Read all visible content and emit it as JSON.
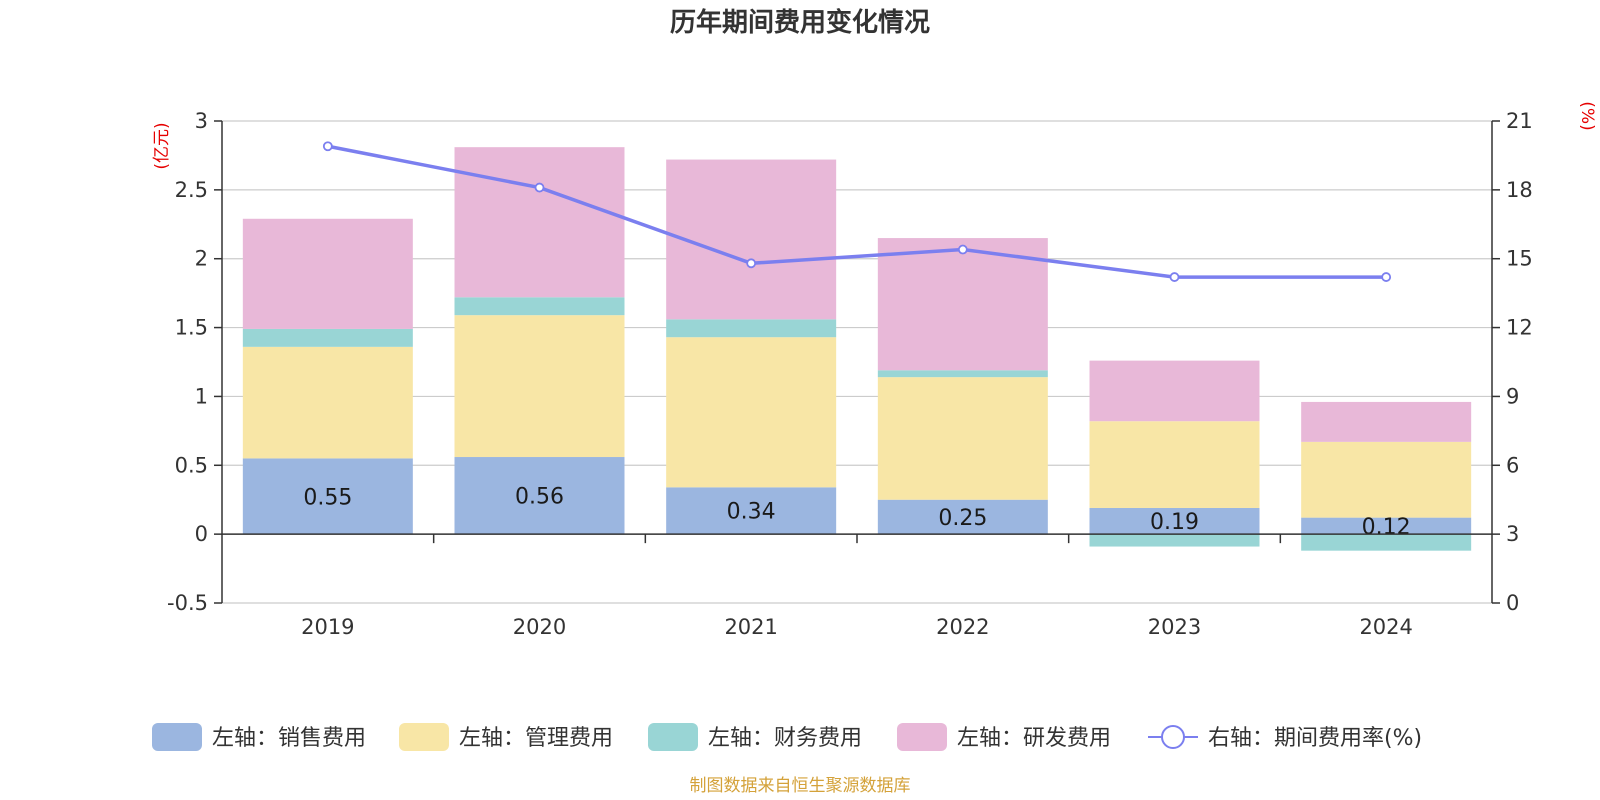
{
  "chart_data": {
    "type": "bar",
    "stacked": true,
    "title": "历年期间费用变化情况",
    "categories": [
      "2019",
      "2020",
      "2021",
      "2022",
      "2023",
      "2024"
    ],
    "left_axis": {
      "unit": "(亿元)",
      "min": -0.5,
      "max": 3,
      "ticks": [
        "-0.5",
        "0",
        "0.5",
        "1",
        "1.5",
        "2",
        "2.5",
        "3"
      ]
    },
    "right_axis": {
      "unit": "(%)",
      "min": 0,
      "max": 21,
      "ticks": [
        "0",
        "3",
        "6",
        "9",
        "12",
        "15",
        "18",
        "21"
      ]
    },
    "series": [
      {
        "name": "左轴：销售费用",
        "axis": "left",
        "color": "#9bb6e0",
        "values": [
          0.55,
          0.56,
          0.34,
          0.25,
          0.19,
          0.12
        ],
        "labels": [
          "0.55",
          "0.56",
          "0.34",
          "0.25",
          "0.19",
          "0.12"
        ]
      },
      {
        "name": "左轴：管理费用",
        "axis": "left",
        "color": "#f8e6a6",
        "values": [
          0.81,
          1.03,
          1.09,
          0.89,
          0.63,
          0.55
        ]
      },
      {
        "name": "左轴：财务费用",
        "axis": "left",
        "color": "#99d5d5",
        "values": [
          0.13,
          0.13,
          0.13,
          0.05,
          -0.09,
          -0.12
        ]
      },
      {
        "name": "左轴：研发费用",
        "axis": "left",
        "color": "#e8b8d8",
        "values": [
          0.8,
          1.09,
          1.16,
          0.96,
          0.44,
          0.29
        ]
      },
      {
        "name": "右轴：期间费用率(%)",
        "axis": "right",
        "type": "line",
        "color": "#7b7fef",
        "values": [
          19.9,
          18.1,
          14.8,
          15.4,
          14.2,
          14.2
        ]
      }
    ],
    "legend_position": "bottom",
    "grid": true
  },
  "source_text": "制图数据来自恒生聚源数据库"
}
